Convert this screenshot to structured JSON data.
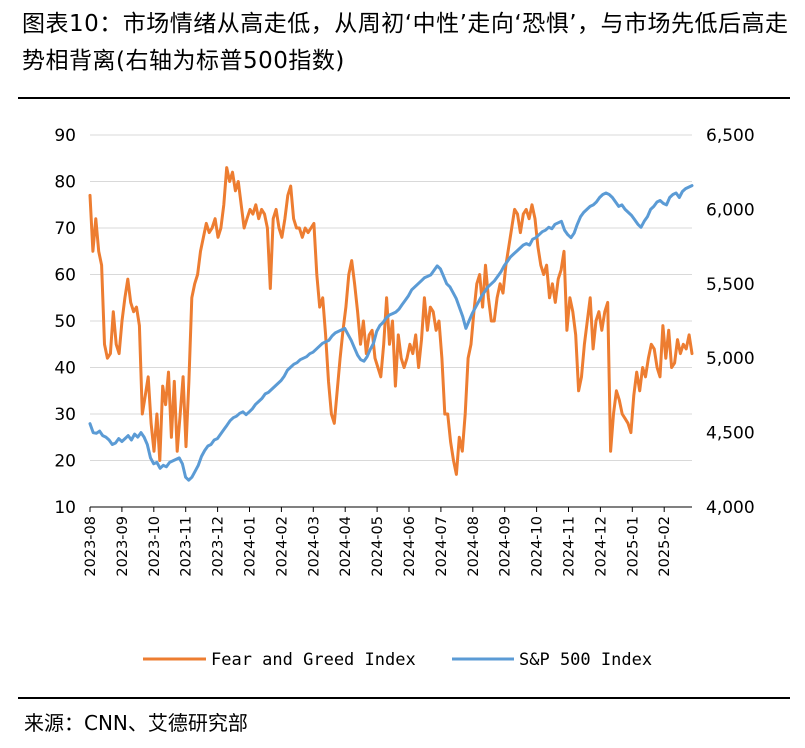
{
  "title": "图表10：市场情绪从高走低，从周初‘中性’走向‘恐惧’，与市场先低后高走势相背离(右轴为标普500指数)",
  "source": "来源：CNN、艾德研究部",
  "colors": {
    "fear_greed": "#ED7D31",
    "sp500": "#5B9BD5",
    "grid": "#d9d9d9",
    "axis": "#000000"
  },
  "chart_data": {
    "type": "line",
    "x_start": "2023-08",
    "x_end": "2025-02",
    "x_tick_labels": [
      "2023-08",
      "2023-09",
      "2023-10",
      "2023-11",
      "2023-12",
      "2024-01",
      "2024-02",
      "2024-03",
      "2024-04",
      "2024-05",
      "2024-06",
      "2024-07",
      "2024-08",
      "2024-09",
      "2024-10",
      "2024-11",
      "2024-12",
      "2025-01",
      "2025-02"
    ],
    "left_axis": {
      "min": 10,
      "max": 90,
      "step": 10,
      "tick_labels": [
        "10",
        "20",
        "30",
        "40",
        "50",
        "60",
        "70",
        "80",
        "90"
      ]
    },
    "right_axis": {
      "min": 4000,
      "max": 6500,
      "step": 500,
      "tick_labels": [
        "4,000",
        "4,500",
        "5,000",
        "5,500",
        "6,000",
        "6,500"
      ]
    },
    "series": [
      {
        "name": "Fear and Greed Index",
        "axis": "left",
        "color": "#ED7D31",
        "values": [
          77,
          65,
          72,
          65,
          62,
          45,
          42,
          43,
          52,
          45,
          43,
          50,
          55,
          59,
          54,
          52,
          53,
          49,
          30,
          34,
          38,
          28,
          22,
          30,
          20,
          36,
          32,
          39,
          25,
          37,
          22,
          30,
          38,
          23,
          37,
          55,
          58,
          60,
          65,
          68,
          71,
          69,
          70,
          72,
          68,
          70,
          75,
          83,
          80,
          82,
          78,
          80,
          75,
          70,
          72,
          74,
          73,
          75,
          72,
          74,
          73,
          70,
          57,
          72,
          74,
          70,
          68,
          72,
          77,
          79,
          72,
          70,
          70,
          68,
          70,
          69,
          70,
          71,
          60,
          53,
          55,
          47,
          37,
          30,
          28,
          35,
          42,
          48,
          53,
          60,
          63,
          58,
          52,
          45,
          50,
          43,
          47,
          48,
          42,
          40,
          38,
          45,
          55,
          45,
          50,
          36,
          47,
          42,
          40,
          42,
          45,
          43,
          47,
          40,
          46,
          55,
          48,
          53,
          52,
          48,
          50,
          42,
          30,
          30,
          24,
          20,
          17,
          25,
          22,
          30,
          42,
          45,
          52,
          58,
          60,
          53,
          62,
          55,
          50,
          50,
          55,
          58,
          56,
          62,
          66,
          70,
          74,
          73,
          69,
          73,
          74,
          72,
          75,
          72,
          66,
          62,
          60,
          62,
          55,
          58,
          54,
          59,
          61,
          65,
          48,
          55,
          52,
          47,
          35,
          38,
          45,
          50,
          55,
          44,
          50,
          52,
          48,
          52,
          54,
          22,
          30,
          35,
          33,
          30,
          29,
          28,
          26,
          34,
          39,
          35,
          40,
          38,
          42,
          45,
          44,
          40,
          38,
          49,
          42,
          48,
          40,
          41,
          46,
          43,
          45,
          44,
          47,
          43
        ]
      },
      {
        "name": "S&P 500 Index",
        "axis": "right",
        "color": "#5B9BD5",
        "values": [
          4560,
          4500,
          4495,
          4510,
          4480,
          4470,
          4450,
          4420,
          4430,
          4460,
          4440,
          4460,
          4480,
          4450,
          4490,
          4470,
          4500,
          4470,
          4420,
          4330,
          4290,
          4300,
          4260,
          4280,
          4270,
          4300,
          4310,
          4320,
          4330,
          4290,
          4200,
          4180,
          4200,
          4240,
          4280,
          4340,
          4380,
          4410,
          4420,
          4450,
          4460,
          4490,
          4520,
          4550,
          4580,
          4600,
          4610,
          4630,
          4640,
          4620,
          4640,
          4660,
          4690,
          4710,
          4730,
          4760,
          4770,
          4790,
          4810,
          4830,
          4850,
          4880,
          4920,
          4940,
          4960,
          4970,
          4990,
          5000,
          5010,
          5030,
          5040,
          5060,
          5080,
          5100,
          5110,
          5120,
          5150,
          5170,
          5180,
          5190,
          5200,
          5160,
          5120,
          5070,
          5020,
          4990,
          4980,
          5010,
          5060,
          5100,
          5180,
          5220,
          5240,
          5270,
          5290,
          5300,
          5310,
          5330,
          5360,
          5390,
          5420,
          5460,
          5480,
          5500,
          5520,
          5540,
          5550,
          5560,
          5590,
          5620,
          5600,
          5550,
          5500,
          5480,
          5440,
          5400,
          5340,
          5280,
          5200,
          5250,
          5300,
          5340,
          5380,
          5420,
          5450,
          5480,
          5500,
          5520,
          5550,
          5580,
          5620,
          5650,
          5680,
          5700,
          5720,
          5740,
          5760,
          5770,
          5760,
          5800,
          5810,
          5830,
          5850,
          5860,
          5880,
          5870,
          5900,
          5910,
          5920,
          5860,
          5830,
          5810,
          5840,
          5900,
          5950,
          5980,
          6000,
          6020,
          6030,
          6050,
          6080,
          6100,
          6110,
          6100,
          6080,
          6050,
          6020,
          6030,
          6000,
          5980,
          5960,
          5930,
          5900,
          5880,
          5920,
          5950,
          6000,
          6020,
          6050,
          6060,
          6040,
          6030,
          6080,
          6100,
          6110,
          6080,
          6120,
          6140,
          6150,
          6160
        ]
      }
    ]
  }
}
